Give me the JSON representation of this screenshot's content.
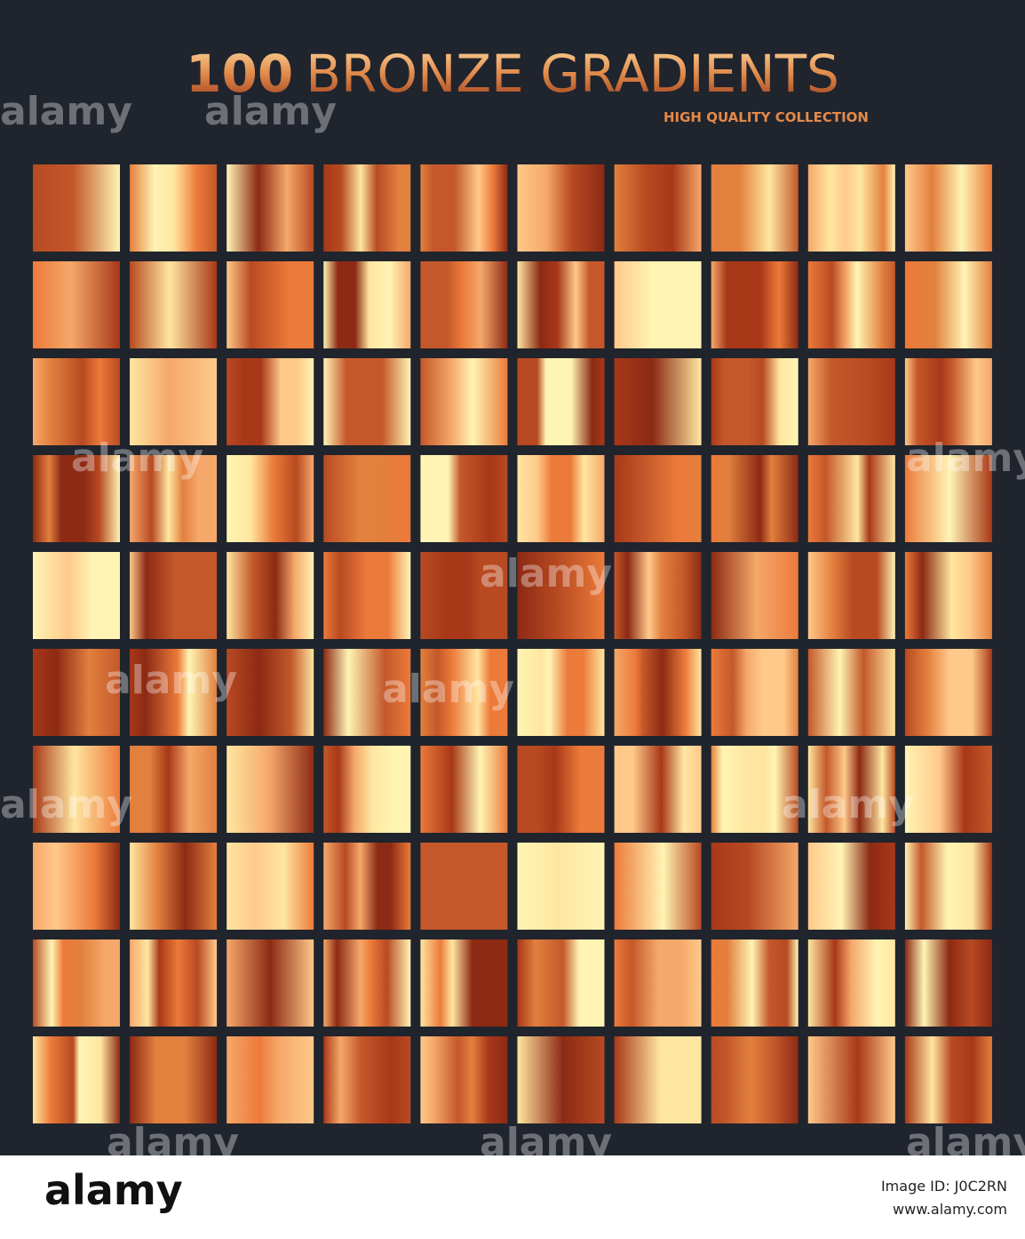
{
  "header": {
    "title_number": "100",
    "title_text": "BRONZE GRADIENTS",
    "subtitle": "HIGH QUALITY COLLECTION"
  },
  "watermark": "alamy",
  "footer": {
    "logo": "alamy",
    "image_id": "Image ID: J0C2RN",
    "url": "www.alamy.com"
  }
}
